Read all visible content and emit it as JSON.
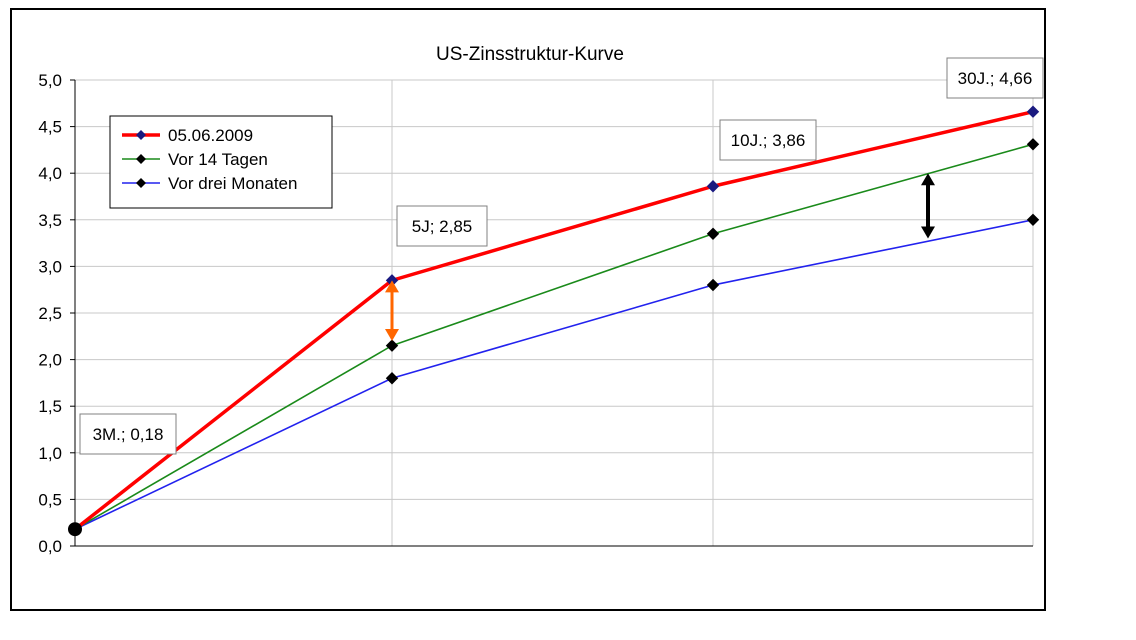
{
  "chart_data": {
    "type": "line",
    "title": "US-Zinsstruktur-Kurve",
    "xlabel": "",
    "ylabel": "",
    "ylim": [
      0,
      5
    ],
    "y_ticks": [
      "0,0",
      "0,5",
      "1,0",
      "1,5",
      "2,0",
      "2,5",
      "3,0",
      "3,5",
      "4,0",
      "4,5",
      "5,0"
    ],
    "categories": [
      "3M",
      "5J",
      "10J",
      "30J"
    ],
    "grid": true,
    "legend_position": "top-left",
    "series": [
      {
        "name": "05.06.2009",
        "color": "#ff0000",
        "marker_color": "#1a1a80",
        "values": [
          0.18,
          2.85,
          3.86,
          4.66
        ]
      },
      {
        "name": "Vor 14 Tagen",
        "color": "#1a8a1a",
        "marker_color": "#000000",
        "values": [
          0.18,
          2.15,
          3.35,
          4.31
        ]
      },
      {
        "name": "Vor drei Monaten",
        "color": "#2222ee",
        "marker_color": "#000000",
        "values": [
          0.18,
          1.8,
          2.8,
          3.5
        ]
      }
    ],
    "annotations": [
      {
        "text": "3M.; 0,18"
      },
      {
        "text": "5J;  2,85"
      },
      {
        "text": "10J.; 3,86"
      },
      {
        "text": "30J.; 4,66"
      }
    ],
    "spread_arrows": [
      {
        "color": "#ff6600",
        "from": 2.2,
        "to": 2.85
      },
      {
        "color": "#000000",
        "from": 3.3,
        "to": 4.0
      }
    ]
  }
}
